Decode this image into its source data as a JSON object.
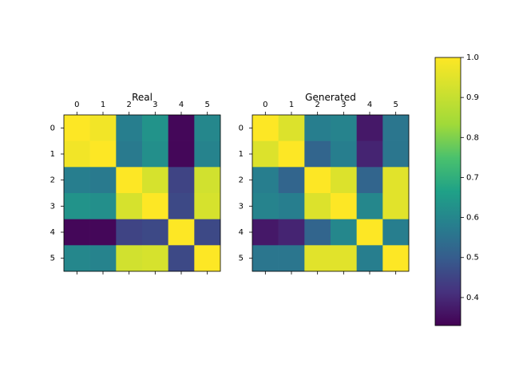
{
  "chart_data": {
    "type": "heatmap",
    "panels": [
      {
        "title": "Real",
        "x_ticks": [
          "0",
          "1",
          "2",
          "3",
          "4",
          "5"
        ],
        "y_ticks": [
          "0",
          "1",
          "2",
          "3",
          "4",
          "5"
        ],
        "values": [
          [
            1.0,
            0.98,
            0.58,
            0.63,
            0.34,
            0.6
          ],
          [
            0.98,
            1.0,
            0.57,
            0.62,
            0.34,
            0.59
          ],
          [
            0.58,
            0.57,
            1.0,
            0.93,
            0.45,
            0.92
          ],
          [
            0.63,
            0.62,
            0.93,
            1.0,
            0.46,
            0.93
          ],
          [
            0.34,
            0.34,
            0.45,
            0.46,
            1.0,
            0.46
          ],
          [
            0.6,
            0.59,
            0.92,
            0.93,
            0.46,
            1.0
          ]
        ]
      },
      {
        "title": "Generated",
        "x_ticks": [
          "0",
          "1",
          "2",
          "3",
          "4",
          "5"
        ],
        "y_ticks": [
          "0",
          "1",
          "2",
          "3",
          "4",
          "5"
        ],
        "values": [
          [
            1.0,
            0.94,
            0.58,
            0.59,
            0.37,
            0.56
          ],
          [
            0.94,
            1.0,
            0.52,
            0.58,
            0.39,
            0.56
          ],
          [
            0.58,
            0.52,
            1.0,
            0.94,
            0.52,
            0.95
          ],
          [
            0.59,
            0.58,
            0.94,
            1.0,
            0.6,
            0.95
          ],
          [
            0.37,
            0.39,
            0.52,
            0.6,
            1.0,
            0.58
          ],
          [
            0.56,
            0.56,
            0.95,
            0.95,
            0.58,
            1.0
          ]
        ]
      }
    ],
    "colorbar": {
      "colormap": "viridis",
      "vmin": 0.33,
      "vmax": 1.0,
      "ticks": [
        "0.4",
        "0.5",
        "0.6",
        "0.7",
        "0.8",
        "0.9",
        "1.0"
      ]
    }
  }
}
